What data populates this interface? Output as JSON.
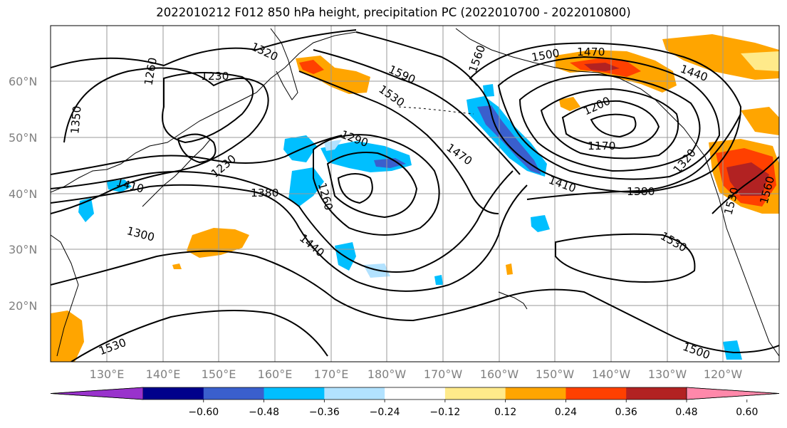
{
  "title": "2022010212 F012 850 hPa height, precipitation PC (2022010700 - 2022010800)",
  "lat_labels": [
    "60°N",
    "50°N",
    "40°N",
    "30°N",
    "20°N"
  ],
  "lon_labels": [
    "130°E",
    "140°E",
    "150°E",
    "160°E",
    "170°E",
    "180°W",
    "170°W",
    "160°W",
    "150°W",
    "140°W",
    "130°W",
    "120°W"
  ],
  "contour_labels": [
    "1320",
    "1260",
    "1230",
    "1350",
    "1590",
    "1530",
    "1560",
    "1500",
    "1470",
    "1440",
    "1200",
    "1170",
    "1290",
    "1230",
    "1410",
    "1380",
    "1260",
    "1470",
    "1410",
    "1380",
    "1320",
    "1300",
    "1440",
    "1530",
    "1530",
    "1500",
    "1530",
    "1560"
  ],
  "colorbar": {
    "colors": [
      "#9932cc",
      "#00008b",
      "#3a5fcd",
      "#00bfff",
      "#b2e2ff",
      "#ffffff",
      "#ffea8a",
      "#ffa500",
      "#ff4000",
      "#b22222",
      "#ff88aa"
    ],
    "ticks": [
      "−0.60",
      "−0.48",
      "−0.36",
      "−0.24",
      "−0.12",
      "0.12",
      "0.24",
      "0.36",
      "0.48",
      "0.60"
    ]
  },
  "colors": {
    "contour": "#000000",
    "grid": "#9a9a9a",
    "label": "#808080"
  }
}
